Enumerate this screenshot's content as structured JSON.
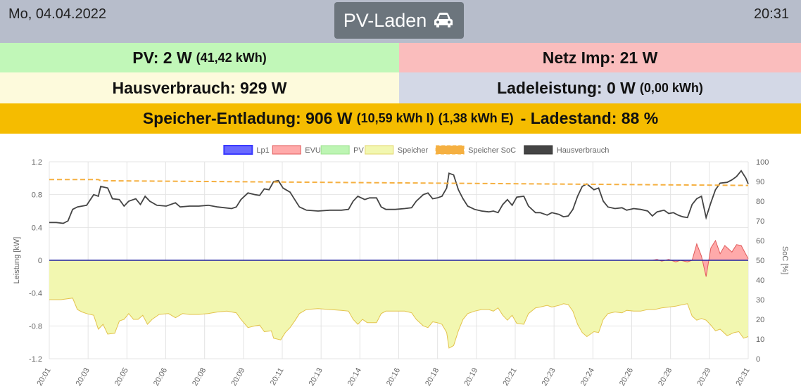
{
  "header": {
    "date": "Mo, 04.04.2022",
    "time": "20:31",
    "mode_label": "PV-Laden",
    "mode_icon": "car-icon"
  },
  "tiles": {
    "pv": {
      "label": "PV: 2 W",
      "sub": "(41,42 kWh)",
      "color": "#c1f7b8"
    },
    "grid": {
      "label": "Netz Imp: 21 W",
      "color": "#fabdbd"
    },
    "house": {
      "label": "Hausverbrauch: 929 W",
      "color": "#fdfadc"
    },
    "charge": {
      "label": "Ladeleistung: 0 W",
      "sub": "(0,00 kWh)",
      "color": "#d3d8e6"
    },
    "storage": {
      "label": "Speicher-Entladung: 906 W",
      "sub1": "(10,59 kWh I)",
      "sub2": "(1,38 kWh E)",
      "label2": "- Ladestand: 88 %",
      "color": "#f5bc00"
    }
  },
  "chart_data": {
    "type": "line",
    "legend": {
      "placement": "top",
      "entries": [
        {
          "name": "Lp1",
          "color": "#6a6aff"
        },
        {
          "name": "EVU",
          "color": "#ffaaaa"
        },
        {
          "name": "PV",
          "color": "#bdf5b3"
        },
        {
          "name": "Speicher",
          "color": "#f2f7b0"
        },
        {
          "name": "Speicher SoC",
          "color": "#f5b041"
        },
        {
          "name": "Hausverbrauch",
          "color": "#444444"
        }
      ]
    },
    "ylabel_left": "Leistung [kW]",
    "ylabel_right": "SoC [%]",
    "y_left": {
      "min": -1.2,
      "max": 1.2,
      "ticks": [
        "1.2",
        "0.8",
        "0.4",
        "0",
        "-0.4",
        "-0.8",
        "-1.2"
      ]
    },
    "y_right": {
      "min": 0,
      "max": 100,
      "ticks": [
        "100",
        "90",
        "80",
        "70",
        "60",
        "50",
        "40",
        "30",
        "20",
        "10",
        "0"
      ]
    },
    "x_ticks": [
      "20:01",
      "20:03",
      "20:05",
      "20:06",
      "20:08",
      "20:09",
      "20:11",
      "20:13",
      "20:14",
      "20:16",
      "20:18",
      "20:19",
      "20:21",
      "20:23",
      "20:24",
      "20:26",
      "20:28",
      "20:29",
      "20:31"
    ],
    "grid": true,
    "series": {
      "Hausverbrauch": [
        [
          0,
          0.46
        ],
        [
          0.3,
          0.46
        ],
        [
          0.6,
          0.45
        ],
        [
          0.8,
          0.48
        ],
        [
          1.0,
          0.62
        ],
        [
          1.2,
          0.65
        ],
        [
          1.6,
          0.67
        ],
        [
          1.9,
          0.8
        ],
        [
          2.1,
          0.78
        ],
        [
          2.2,
          0.9
        ],
        [
          2.5,
          0.88
        ],
        [
          2.7,
          0.75
        ],
        [
          3.0,
          0.74
        ],
        [
          3.2,
          0.66
        ],
        [
          3.4,
          0.72
        ],
        [
          3.7,
          0.75
        ],
        [
          3.9,
          0.68
        ],
        [
          4.1,
          0.78
        ],
        [
          4.3,
          0.72
        ],
        [
          4.6,
          0.67
        ],
        [
          5.0,
          0.66
        ],
        [
          5.4,
          0.7
        ],
        [
          5.6,
          0.65
        ],
        [
          6.0,
          0.66
        ],
        [
          6.4,
          0.66
        ],
        [
          6.8,
          0.67
        ],
        [
          7.2,
          0.65
        ],
        [
          7.5,
          0.64
        ],
        [
          7.8,
          0.63
        ],
        [
          8.0,
          0.65
        ],
        [
          8.2,
          0.74
        ],
        [
          8.5,
          0.82
        ],
        [
          8.8,
          0.8
        ],
        [
          9.0,
          0.79
        ],
        [
          9.2,
          0.87
        ],
        [
          9.4,
          0.86
        ],
        [
          9.6,
          0.96
        ],
        [
          9.8,
          0.97
        ],
        [
          10.0,
          0.88
        ],
        [
          10.3,
          0.83
        ],
        [
          10.5,
          0.74
        ],
        [
          10.7,
          0.65
        ],
        [
          11.0,
          0.61
        ],
        [
          11.5,
          0.6
        ],
        [
          12.0,
          0.61
        ],
        [
          12.5,
          0.61
        ],
        [
          12.8,
          0.62
        ],
        [
          13.0,
          0.72
        ],
        [
          13.2,
          0.78
        ],
        [
          13.5,
          0.74
        ],
        [
          13.7,
          0.76
        ],
        [
          14.0,
          0.76
        ],
        [
          14.2,
          0.65
        ],
        [
          14.4,
          0.62
        ],
        [
          14.8,
          0.62
        ],
        [
          15.2,
          0.63
        ],
        [
          15.5,
          0.64
        ],
        [
          15.7,
          0.72
        ],
        [
          16.0,
          0.8
        ],
        [
          16.2,
          0.82
        ],
        [
          16.4,
          0.75
        ],
        [
          16.6,
          0.76
        ],
        [
          16.8,
          0.78
        ],
        [
          17.0,
          0.88
        ],
        [
          17.1,
          1.06
        ],
        [
          17.3,
          1.04
        ],
        [
          17.5,
          0.86
        ],
        [
          17.7,
          0.75
        ],
        [
          17.9,
          0.66
        ],
        [
          18.2,
          0.62
        ],
        [
          18.5,
          0.6
        ],
        [
          18.8,
          0.59
        ],
        [
          19.0,
          0.6
        ],
        [
          19.2,
          0.58
        ],
        [
          19.4,
          0.68
        ],
        [
          19.6,
          0.74
        ],
        [
          19.8,
          0.67
        ],
        [
          20.0,
          0.77
        ],
        [
          20.3,
          0.78
        ],
        [
          20.5,
          0.66
        ],
        [
          20.8,
          0.58
        ],
        [
          21.0,
          0.58
        ],
        [
          21.3,
          0.55
        ],
        [
          21.5,
          0.58
        ],
        [
          21.8,
          0.56
        ],
        [
          22.0,
          0.53
        ],
        [
          22.2,
          0.54
        ],
        [
          22.4,
          0.62
        ],
        [
          22.6,
          0.78
        ],
        [
          22.8,
          0.9
        ],
        [
          23.0,
          0.93
        ],
        [
          23.3,
          0.86
        ],
        [
          23.5,
          0.88
        ],
        [
          23.7,
          0.72
        ],
        [
          23.9,
          0.65
        ],
        [
          24.2,
          0.63
        ],
        [
          24.5,
          0.64
        ],
        [
          24.7,
          0.61
        ],
        [
          25.0,
          0.63
        ],
        [
          25.3,
          0.62
        ],
        [
          25.6,
          0.6
        ],
        [
          25.8,
          0.54
        ],
        [
          26.0,
          0.59
        ],
        [
          26.3,
          0.61
        ],
        [
          26.5,
          0.57
        ],
        [
          26.7,
          0.58
        ],
        [
          26.9,
          0.55
        ],
        [
          27.1,
          0.53
        ],
        [
          27.3,
          0.52
        ],
        [
          27.5,
          0.68
        ],
        [
          27.7,
          0.75
        ],
        [
          27.9,
          0.78
        ],
        [
          28.1,
          0.52
        ],
        [
          28.3,
          0.7
        ],
        [
          28.5,
          0.86
        ],
        [
          28.7,
          0.94
        ],
        [
          29.0,
          0.95
        ],
        [
          29.2,
          0.98
        ],
        [
          29.4,
          1.02
        ],
        [
          29.6,
          1.09
        ],
        [
          29.8,
          1.0
        ],
        [
          29.9,
          0.93
        ]
      ],
      "Speicher": [
        [
          0,
          -0.48
        ],
        [
          0.5,
          -0.48
        ],
        [
          1.0,
          -0.46
        ],
        [
          1.2,
          -0.6
        ],
        [
          1.4,
          -0.63
        ],
        [
          1.6,
          -0.65
        ],
        [
          1.9,
          -0.67
        ],
        [
          2.1,
          -0.84
        ],
        [
          2.3,
          -0.78
        ],
        [
          2.5,
          -0.9
        ],
        [
          2.8,
          -0.89
        ],
        [
          3.0,
          -0.74
        ],
        [
          3.2,
          -0.72
        ],
        [
          3.4,
          -0.65
        ],
        [
          3.6,
          -0.72
        ],
        [
          3.8,
          -0.72
        ],
        [
          4.0,
          -0.67
        ],
        [
          4.2,
          -0.78
        ],
        [
          4.4,
          -0.72
        ],
        [
          4.7,
          -0.66
        ],
        [
          5.1,
          -0.65
        ],
        [
          5.4,
          -0.7
        ],
        [
          5.7,
          -0.65
        ],
        [
          6.0,
          -0.66
        ],
        [
          6.4,
          -0.66
        ],
        [
          6.8,
          -0.65
        ],
        [
          7.2,
          -0.63
        ],
        [
          7.6,
          -0.62
        ],
        [
          8.0,
          -0.64
        ],
        [
          8.2,
          -0.72
        ],
        [
          8.5,
          -0.82
        ],
        [
          8.8,
          -0.8
        ],
        [
          9.0,
          -0.79
        ],
        [
          9.2,
          -0.87
        ],
        [
          9.5,
          -0.86
        ],
        [
          9.6,
          -0.95
        ],
        [
          9.9,
          -0.97
        ],
        [
          10.1,
          -0.88
        ],
        [
          10.3,
          -0.82
        ],
        [
          10.5,
          -0.74
        ],
        [
          10.7,
          -0.65
        ],
        [
          11.0,
          -0.6
        ],
        [
          11.5,
          -0.59
        ],
        [
          12.0,
          -0.6
        ],
        [
          12.5,
          -0.61
        ],
        [
          12.8,
          -0.62
        ],
        [
          13.0,
          -0.72
        ],
        [
          13.2,
          -0.78
        ],
        [
          13.4,
          -0.72
        ],
        [
          13.6,
          -0.76
        ],
        [
          14.0,
          -0.76
        ],
        [
          14.2,
          -0.65
        ],
        [
          14.4,
          -0.62
        ],
        [
          14.8,
          -0.62
        ],
        [
          15.2,
          -0.62
        ],
        [
          15.5,
          -0.64
        ],
        [
          15.7,
          -0.72
        ],
        [
          16.0,
          -0.8
        ],
        [
          16.2,
          -0.82
        ],
        [
          16.4,
          -0.75
        ],
        [
          16.6,
          -0.76
        ],
        [
          16.8,
          -0.78
        ],
        [
          17.0,
          -0.88
        ],
        [
          17.1,
          -1.07
        ],
        [
          17.3,
          -1.04
        ],
        [
          17.5,
          -0.86
        ],
        [
          17.7,
          -0.72
        ],
        [
          17.9,
          -0.65
        ],
        [
          18.2,
          -0.62
        ],
        [
          18.5,
          -0.6
        ],
        [
          18.8,
          -0.6
        ],
        [
          19.0,
          -0.62
        ],
        [
          19.2,
          -0.58
        ],
        [
          19.4,
          -0.67
        ],
        [
          19.6,
          -0.73
        ],
        [
          19.8,
          -0.67
        ],
        [
          20.0,
          -0.77
        ],
        [
          20.3,
          -0.78
        ],
        [
          20.5,
          -0.65
        ],
        [
          20.8,
          -0.58
        ],
        [
          21.0,
          -0.57
        ],
        [
          21.3,
          -0.55
        ],
        [
          21.5,
          -0.57
        ],
        [
          21.8,
          -0.55
        ],
        [
          22.0,
          -0.53
        ],
        [
          22.2,
          -0.54
        ],
        [
          22.4,
          -0.62
        ],
        [
          22.6,
          -0.78
        ],
        [
          22.8,
          -0.88
        ],
        [
          23.0,
          -0.93
        ],
        [
          23.3,
          -0.87
        ],
        [
          23.5,
          -0.88
        ],
        [
          23.7,
          -0.72
        ],
        [
          23.9,
          -0.65
        ],
        [
          24.2,
          -0.63
        ],
        [
          24.5,
          -0.64
        ],
        [
          24.7,
          -0.61
        ],
        [
          25.0,
          -0.62
        ],
        [
          25.3,
          -0.62
        ],
        [
          25.6,
          -0.6
        ],
        [
          25.9,
          -0.6
        ],
        [
          26.2,
          -0.58
        ],
        [
          26.5,
          -0.57
        ],
        [
          26.8,
          -0.56
        ],
        [
          27.1,
          -0.54
        ],
        [
          27.3,
          -0.53
        ],
        [
          27.5,
          -0.68
        ],
        [
          27.7,
          -0.73
        ],
        [
          27.9,
          -0.71
        ],
        [
          28.1,
          -0.73
        ],
        [
          28.3,
          -0.79
        ],
        [
          28.5,
          -0.86
        ],
        [
          28.7,
          -0.84
        ],
        [
          29.0,
          -0.92
        ],
        [
          29.3,
          -0.88
        ],
        [
          29.5,
          -0.87
        ],
        [
          29.7,
          -0.95
        ],
        [
          29.9,
          -0.93
        ]
      ],
      "EVU": [
        [
          0,
          0
        ],
        [
          25.8,
          0
        ],
        [
          26.0,
          0.01
        ],
        [
          26.2,
          -0.01
        ],
        [
          26.5,
          0.01
        ],
        [
          26.8,
          -0.02
        ],
        [
          27.0,
          0.0
        ],
        [
          27.3,
          -0.02
        ],
        [
          27.5,
          0.0
        ],
        [
          27.7,
          0.2
        ],
        [
          27.9,
          0.05
        ],
        [
          28.1,
          -0.2
        ],
        [
          28.3,
          0.15
        ],
        [
          28.5,
          0.24
        ],
        [
          28.7,
          0.08
        ],
        [
          28.9,
          0.18
        ],
        [
          29.2,
          0.1
        ],
        [
          29.4,
          0.19
        ],
        [
          29.6,
          0.18
        ],
        [
          29.9,
          0.02
        ]
      ],
      "Speicher SoC": [
        [
          0,
          91
        ],
        [
          2.1,
          91
        ],
        [
          2.2,
          90.4
        ],
        [
          29.9,
          88
        ]
      ]
    }
  }
}
